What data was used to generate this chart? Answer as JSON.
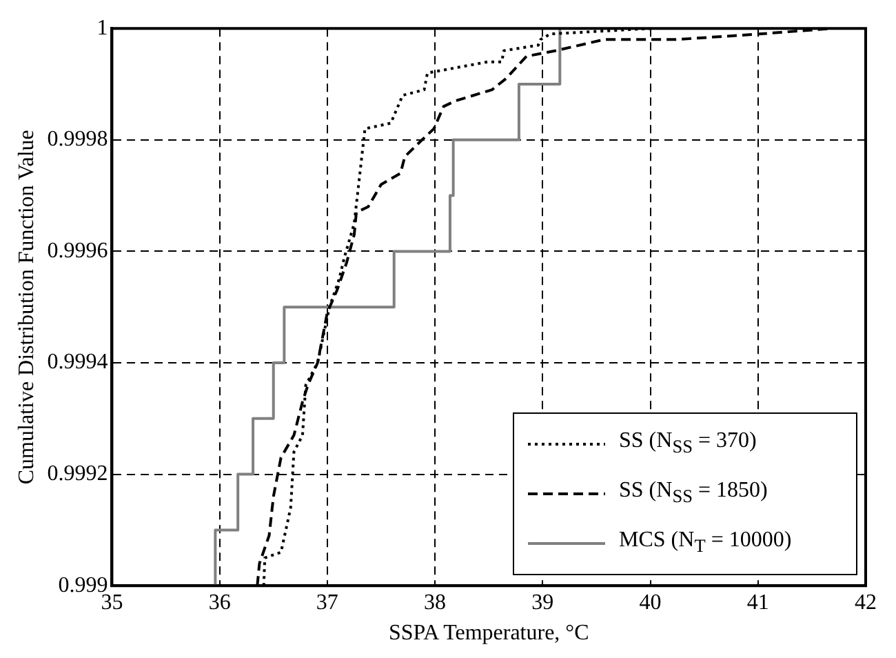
{
  "chart_data": {
    "type": "line",
    "xlabel": "SSPA Temperature, °C",
    "ylabel": "Cumulative Distribution Function Value",
    "xlim": [
      35,
      42
    ],
    "xticks": [
      35,
      36,
      37,
      38,
      39,
      40,
      41,
      42
    ],
    "ylim": [
      0.999,
      1
    ],
    "yticks": [
      0.999,
      0.9992,
      0.9994,
      0.9996,
      0.9998,
      1
    ],
    "grid": true,
    "legend": "bottom right",
    "marker": "none",
    "series": [
      {
        "name": "SS (N$_{SS}$ = 370)",
        "type": "line",
        "line_style": "dotted",
        "color": "#000000",
        "x": [
          36.41,
          36.42,
          36.57,
          36.66,
          36.69,
          36.77,
          36.8,
          36.91,
          37.02,
          37.11,
          37.16,
          37.25,
          37.35,
          37.59,
          37.7,
          37.9,
          37.93,
          38.49,
          38.62,
          38.64,
          38.96,
          38.98,
          39.07,
          40.01
        ],
        "values": [
          0.999,
          0.99905,
          0.99906,
          0.99914,
          0.99924,
          0.99927,
          0.99936,
          0.9994,
          0.9995,
          0.99955,
          0.99959,
          0.99965,
          0.99982,
          0.99983,
          0.99988,
          0.99989,
          0.99992,
          0.99994,
          0.99994,
          0.99996,
          0.99997,
          0.99998,
          0.99999,
          1
        ]
      },
      {
        "name": "SS (N$_{SS}$ = 1850)",
        "type": "line",
        "line_style": "dashed",
        "color": "#000000",
        "x": [
          36.35,
          36.37,
          36.46,
          36.5,
          36.57,
          36.69,
          36.77,
          36.82,
          36.91,
          37.0,
          37.09,
          37.18,
          37.25,
          37.27,
          37.38,
          37.5,
          37.68,
          37.72,
          37.88,
          37.99,
          38.08,
          38.19,
          38.53,
          38.66,
          38.85,
          39.12,
          39.57,
          40.24,
          41.01,
          41.69
        ],
        "values": [
          0.999,
          0.99904,
          0.99909,
          0.99916,
          0.99923,
          0.99927,
          0.99933,
          0.99936,
          0.9994,
          0.99949,
          0.99953,
          0.99958,
          0.99963,
          0.99967,
          0.99968,
          0.99972,
          0.99974,
          0.99977,
          0.9998,
          0.99982,
          0.99986,
          0.99987,
          0.99989,
          0.99991,
          0.99995,
          0.99996,
          0.99998,
          0.99998,
          0.99999,
          1
        ]
      },
      {
        "name": "MCS (N$_{T}$ = 10000)",
        "type": "step",
        "line_style": "solid",
        "color": "#808080",
        "x": [
          35.96,
          35.96,
          36.17,
          36.31,
          36.5,
          36.6,
          37.62,
          38.14,
          38.17,
          38.78,
          39.16
        ],
        "values": [
          0.999,
          0.9991,
          0.9992,
          0.9993,
          0.9994,
          0.9995,
          0.9996,
          0.9997,
          0.9998,
          0.9999,
          1
        ]
      }
    ]
  }
}
